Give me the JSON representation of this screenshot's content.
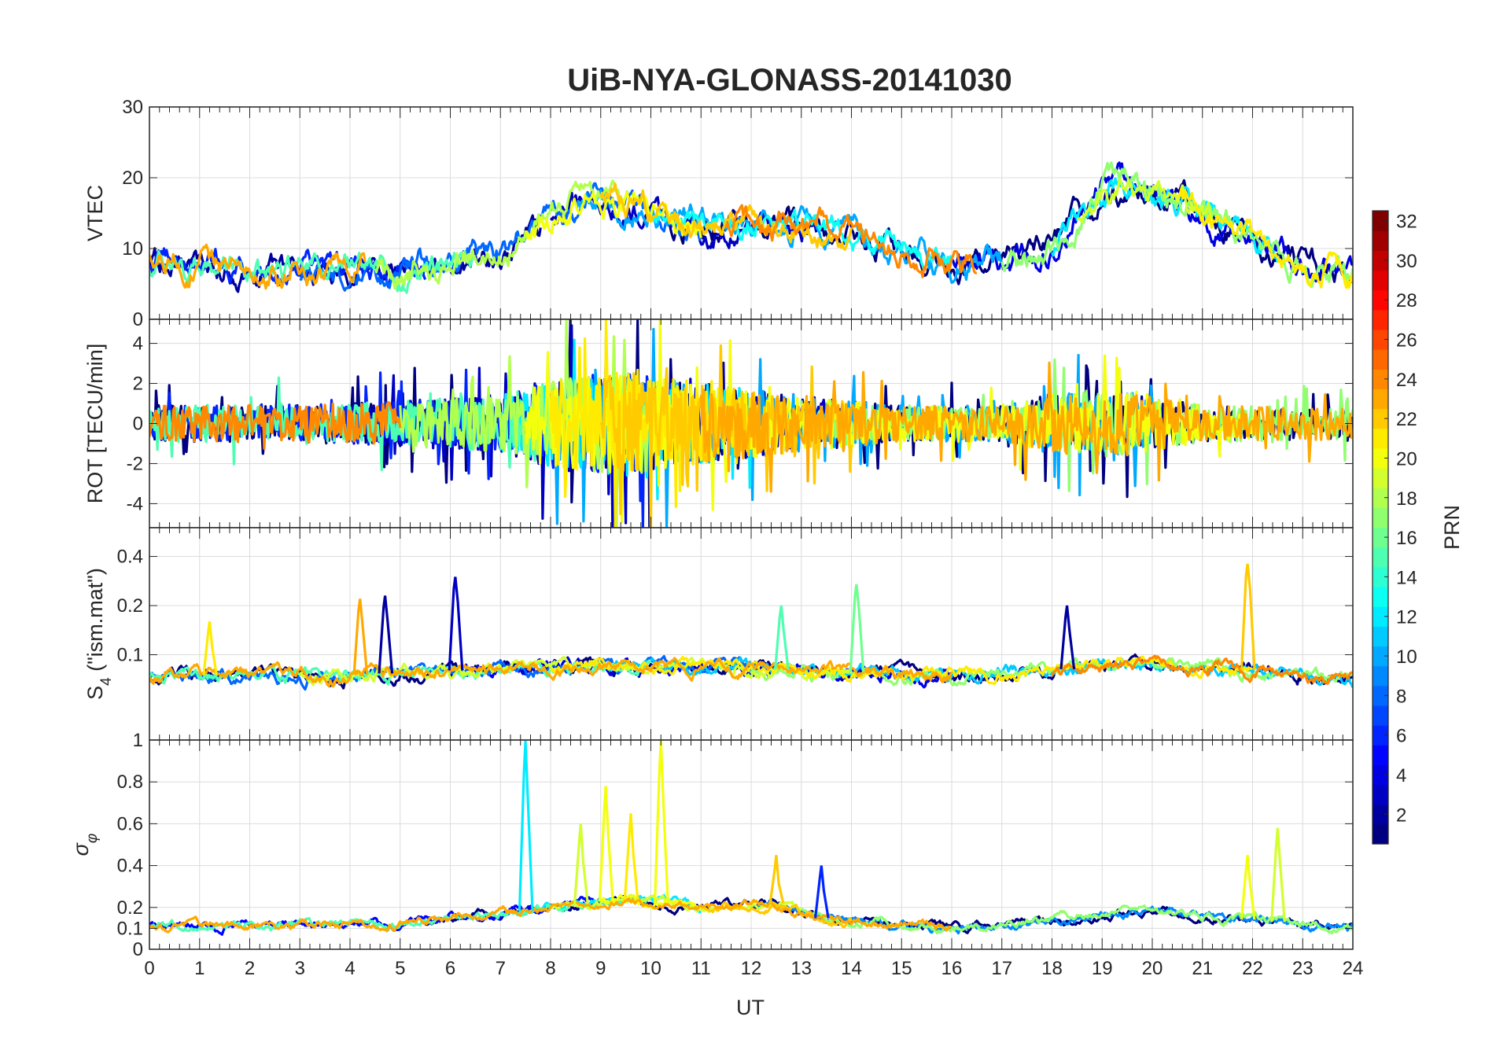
{
  "chart_data": {
    "type": "line",
    "title": "UiB-NYA-GLONASS-20141030",
    "xlabel": "UT",
    "xlim": [
      0,
      24
    ],
    "x_ticks": [
      "0",
      "1",
      "2",
      "3",
      "4",
      "5",
      "6",
      "7",
      "8",
      "9",
      "10",
      "11",
      "12",
      "13",
      "14",
      "15",
      "16",
      "17",
      "18",
      "19",
      "20",
      "21",
      "22",
      "23",
      "24"
    ],
    "colorbar": {
      "label": "PRN",
      "colormap": "jet",
      "range": [
        1,
        32
      ],
      "ticks": [
        "2",
        "4",
        "6",
        "8",
        "10",
        "12",
        "14",
        "16",
        "18",
        "20",
        "22",
        "24",
        "26",
        "28",
        "30",
        "32"
      ],
      "colors": [
        "#000080",
        "#0000ff",
        "#0080ff",
        "#00ffff",
        "#80ff80",
        "#ffff00",
        "#ff8000",
        "#ff0000",
        "#800000"
      ]
    },
    "panels": [
      {
        "id": "vtec",
        "ylabel": "VTEC",
        "ylim": [
          0,
          30
        ],
        "y_ticks": [
          {
            "v": 0,
            "t": "0"
          },
          {
            "v": 10,
            "t": "10"
          },
          {
            "v": 20,
            "t": "20"
          },
          {
            "v": 30,
            "t": "30"
          }
        ],
        "envelope": [
          [
            0,
            8
          ],
          [
            1,
            8
          ],
          [
            2,
            7
          ],
          [
            3,
            7
          ],
          [
            4,
            7
          ],
          [
            5,
            7
          ],
          [
            6,
            8
          ],
          [
            7,
            9
          ],
          [
            7.5,
            12
          ],
          [
            8,
            14
          ],
          [
            8.5,
            16
          ],
          [
            9,
            17
          ],
          [
            9.5,
            16
          ],
          [
            10,
            15
          ],
          [
            11,
            13
          ],
          [
            12,
            14
          ],
          [
            13,
            13
          ],
          [
            14,
            12
          ],
          [
            15,
            10
          ],
          [
            16,
            8
          ],
          [
            17,
            8
          ],
          [
            18,
            10
          ],
          [
            18.5,
            14
          ],
          [
            19,
            18
          ],
          [
            19.5,
            19
          ],
          [
            20,
            18
          ],
          [
            20.5,
            17
          ],
          [
            21,
            15
          ],
          [
            22,
            11
          ],
          [
            23,
            7
          ],
          [
            24,
            6
          ]
        ],
        "amplitude": 3.2,
        "series": [
          {
            "prn": 1,
            "x": [
              10.3,
              24
            ]
          },
          {
            "prn": 2,
            "x": [
              0,
              7.8
            ]
          },
          {
            "prn": 3,
            "x": [
              8,
              13.3
            ]
          },
          {
            "prn": 4,
            "x": [
              16,
              24
            ]
          },
          {
            "prn": 6,
            "x": [
              0,
              5.5
            ]
          },
          {
            "prn": 8,
            "x": [
              3,
              11
            ]
          },
          {
            "prn": 10,
            "x": [
              8.5,
              17
            ]
          },
          {
            "prn": 12,
            "x": [
              18,
              22.5
            ]
          },
          {
            "prn": 13,
            "x": [
              10,
              16
            ]
          },
          {
            "prn": 15,
            "x": [
              0,
              6.5
            ]
          },
          {
            "prn": 17,
            "x": [
              17,
              24
            ]
          },
          {
            "prn": 18,
            "x": [
              4.5,
              9.5
            ]
          },
          {
            "prn": 19,
            "x": [
              18.5,
              21.2
            ]
          },
          {
            "prn": 20,
            "x": [
              7.5,
              11
            ]
          },
          {
            "prn": 21,
            "x": [
              20.5,
              24
            ]
          },
          {
            "prn": 22,
            "x": [
              9,
              14
            ]
          },
          {
            "prn": 24,
            "x": [
              11.5,
              16.5
            ]
          },
          {
            "prn": 23,
            "x": [
              0,
              4.3
            ]
          }
        ]
      },
      {
        "id": "rot",
        "ylabel": "ROT [TECU/min]",
        "ylim": [
          -5.2,
          5.2
        ],
        "y_ticks": [
          {
            "v": -4,
            "t": "-4"
          },
          {
            "v": -2,
            "t": "-2"
          },
          {
            "v": 0,
            "t": "0"
          },
          {
            "v": 2,
            "t": "2"
          },
          {
            "v": 4,
            "t": "4"
          }
        ],
        "envelope": [
          [
            0,
            0
          ],
          [
            24,
            0
          ]
        ],
        "amplitude": 1.0,
        "burst": [
          [
            0,
            0.9
          ],
          [
            4,
            1.0
          ],
          [
            7,
            1.4
          ],
          [
            8,
            2.2
          ],
          [
            9.5,
            2.6
          ],
          [
            11,
            2.0
          ],
          [
            13,
            1.4
          ],
          [
            15,
            0.9
          ],
          [
            17,
            0.9
          ],
          [
            18,
            1.5
          ],
          [
            19.5,
            1.6
          ],
          [
            21,
            0.9
          ],
          [
            24,
            0.8
          ]
        ],
        "series": [
          {
            "prn": 1,
            "x": [
              0,
              24
            ]
          },
          {
            "prn": 3,
            "x": [
              4,
              14
            ]
          },
          {
            "prn": 6,
            "x": [
              0,
              10
            ]
          },
          {
            "prn": 10,
            "x": [
              8,
              20
            ]
          },
          {
            "prn": 12,
            "x": [
              7,
              12
            ]
          },
          {
            "prn": 15,
            "x": [
              0,
              8
            ]
          },
          {
            "prn": 17,
            "x": [
              13,
              24
            ]
          },
          {
            "prn": 18,
            "x": [
              5,
              10
            ]
          },
          {
            "prn": 20,
            "x": [
              7.5,
              22
            ]
          },
          {
            "prn": 21,
            "x": [
              8,
              12
            ]
          },
          {
            "prn": 22,
            "x": [
              9,
              14
            ]
          },
          {
            "prn": 24,
            "x": [
              0,
              5
            ]
          },
          {
            "prn": 23,
            "x": [
              11,
              24
            ]
          }
        ]
      },
      {
        "id": "s4",
        "ylabel": "S4 (\"ism.mat\")",
        "ylabel_main": "S",
        "ylabel_sub": "4",
        "ylabel_rest": " (\"ism.mat\")",
        "ylim": [
          0.03,
          0.6
        ],
        "y_ticks": [
          {
            "v": 0.1,
            "t": "0.1"
          },
          {
            "v": 0.2,
            "t": "0.2"
          },
          {
            "v": 0.4,
            "t": "0.4"
          }
        ],
        "scale": "log",
        "envelope": [
          [
            0,
            0.075
          ],
          [
            4,
            0.075
          ],
          [
            6,
            0.08
          ],
          [
            9,
            0.085
          ],
          [
            11,
            0.085
          ],
          [
            13,
            0.08
          ],
          [
            16,
            0.075
          ],
          [
            18,
            0.08
          ],
          [
            20,
            0.09
          ],
          [
            22,
            0.08
          ],
          [
            24,
            0.07
          ]
        ],
        "amplitude": 0.012,
        "spikes": [
          [
            4.2,
            0.22,
            23
          ],
          [
            4.7,
            0.23,
            2
          ],
          [
            6.1,
            0.3,
            3
          ],
          [
            14.1,
            0.27,
            16
          ],
          [
            18.3,
            0.2,
            2
          ],
          [
            21.9,
            0.36,
            22
          ],
          [
            1.2,
            0.16,
            21
          ],
          [
            12.6,
            0.2,
            15
          ]
        ],
        "series": [
          {
            "prn": 1,
            "x": [
              0,
              24
            ]
          },
          {
            "prn": 4,
            "x": [
              6,
              16
            ]
          },
          {
            "prn": 8,
            "x": [
              0,
              12
            ]
          },
          {
            "prn": 11,
            "x": [
              9,
              24
            ]
          },
          {
            "prn": 15,
            "x": [
              0,
              10
            ]
          },
          {
            "prn": 17,
            "x": [
              12,
              24
            ]
          },
          {
            "prn": 19,
            "x": [
              3,
              14
            ]
          },
          {
            "prn": 21,
            "x": [
              8,
              22
            ]
          },
          {
            "prn": 23,
            "x": [
              0,
              16
            ]
          },
          {
            "prn": 24,
            "x": [
              18,
              24
            ]
          }
        ]
      },
      {
        "id": "sigma",
        "ylabel": "σφ",
        "ylabel_main": "σ",
        "ylabel_sub": "φ",
        "ylim": [
          0,
          1
        ],
        "y_ticks": [
          {
            "v": 0,
            "t": "0"
          },
          {
            "v": 0.1,
            "t": "0.1"
          },
          {
            "v": 0.2,
            "t": "0.2"
          },
          {
            "v": 0.4,
            "t": "0.4"
          },
          {
            "v": 0.6,
            "t": "0.6"
          },
          {
            "v": 0.8,
            "t": "0.8"
          },
          {
            "v": 1,
            "t": "1"
          }
        ],
        "envelope": [
          [
            0,
            0.11
          ],
          [
            5,
            0.12
          ],
          [
            6,
            0.15
          ],
          [
            7,
            0.17
          ],
          [
            8,
            0.2
          ],
          [
            9.5,
            0.24
          ],
          [
            11,
            0.2
          ],
          [
            12.5,
            0.22
          ],
          [
            13.5,
            0.14
          ],
          [
            16,
            0.1
          ],
          [
            17,
            0.12
          ],
          [
            19,
            0.16
          ],
          [
            20,
            0.18
          ],
          [
            22,
            0.14
          ],
          [
            24,
            0.1
          ]
        ],
        "amplitude": 0.035,
        "spikes": [
          [
            7.5,
            1.0,
            12
          ],
          [
            9.1,
            0.78,
            20
          ],
          [
            10.2,
            1.0,
            20
          ],
          [
            9.6,
            0.65,
            21
          ],
          [
            12.5,
            0.45,
            22
          ],
          [
            21.9,
            0.45,
            20
          ],
          [
            22.5,
            0.58,
            19
          ],
          [
            13.4,
            0.4,
            6
          ],
          [
            8.6,
            0.6,
            19
          ]
        ],
        "series": [
          {
            "prn": 1,
            "x": [
              5.5,
              24
            ]
          },
          {
            "prn": 5,
            "x": [
              0,
              9
            ]
          },
          {
            "prn": 9,
            "x": [
              12,
              24
            ]
          },
          {
            "prn": 12,
            "x": [
              7,
              11
            ]
          },
          {
            "prn": 15,
            "x": [
              0,
              10
            ]
          },
          {
            "prn": 17,
            "x": [
              13,
              24
            ]
          },
          {
            "prn": 19,
            "x": [
              8,
              13
            ]
          },
          {
            "prn": 20,
            "x": [
              9,
              11
            ]
          },
          {
            "prn": 22,
            "x": [
              11,
              14
            ]
          },
          {
            "prn": 23,
            "x": [
              0,
              16
            ]
          }
        ]
      }
    ]
  }
}
